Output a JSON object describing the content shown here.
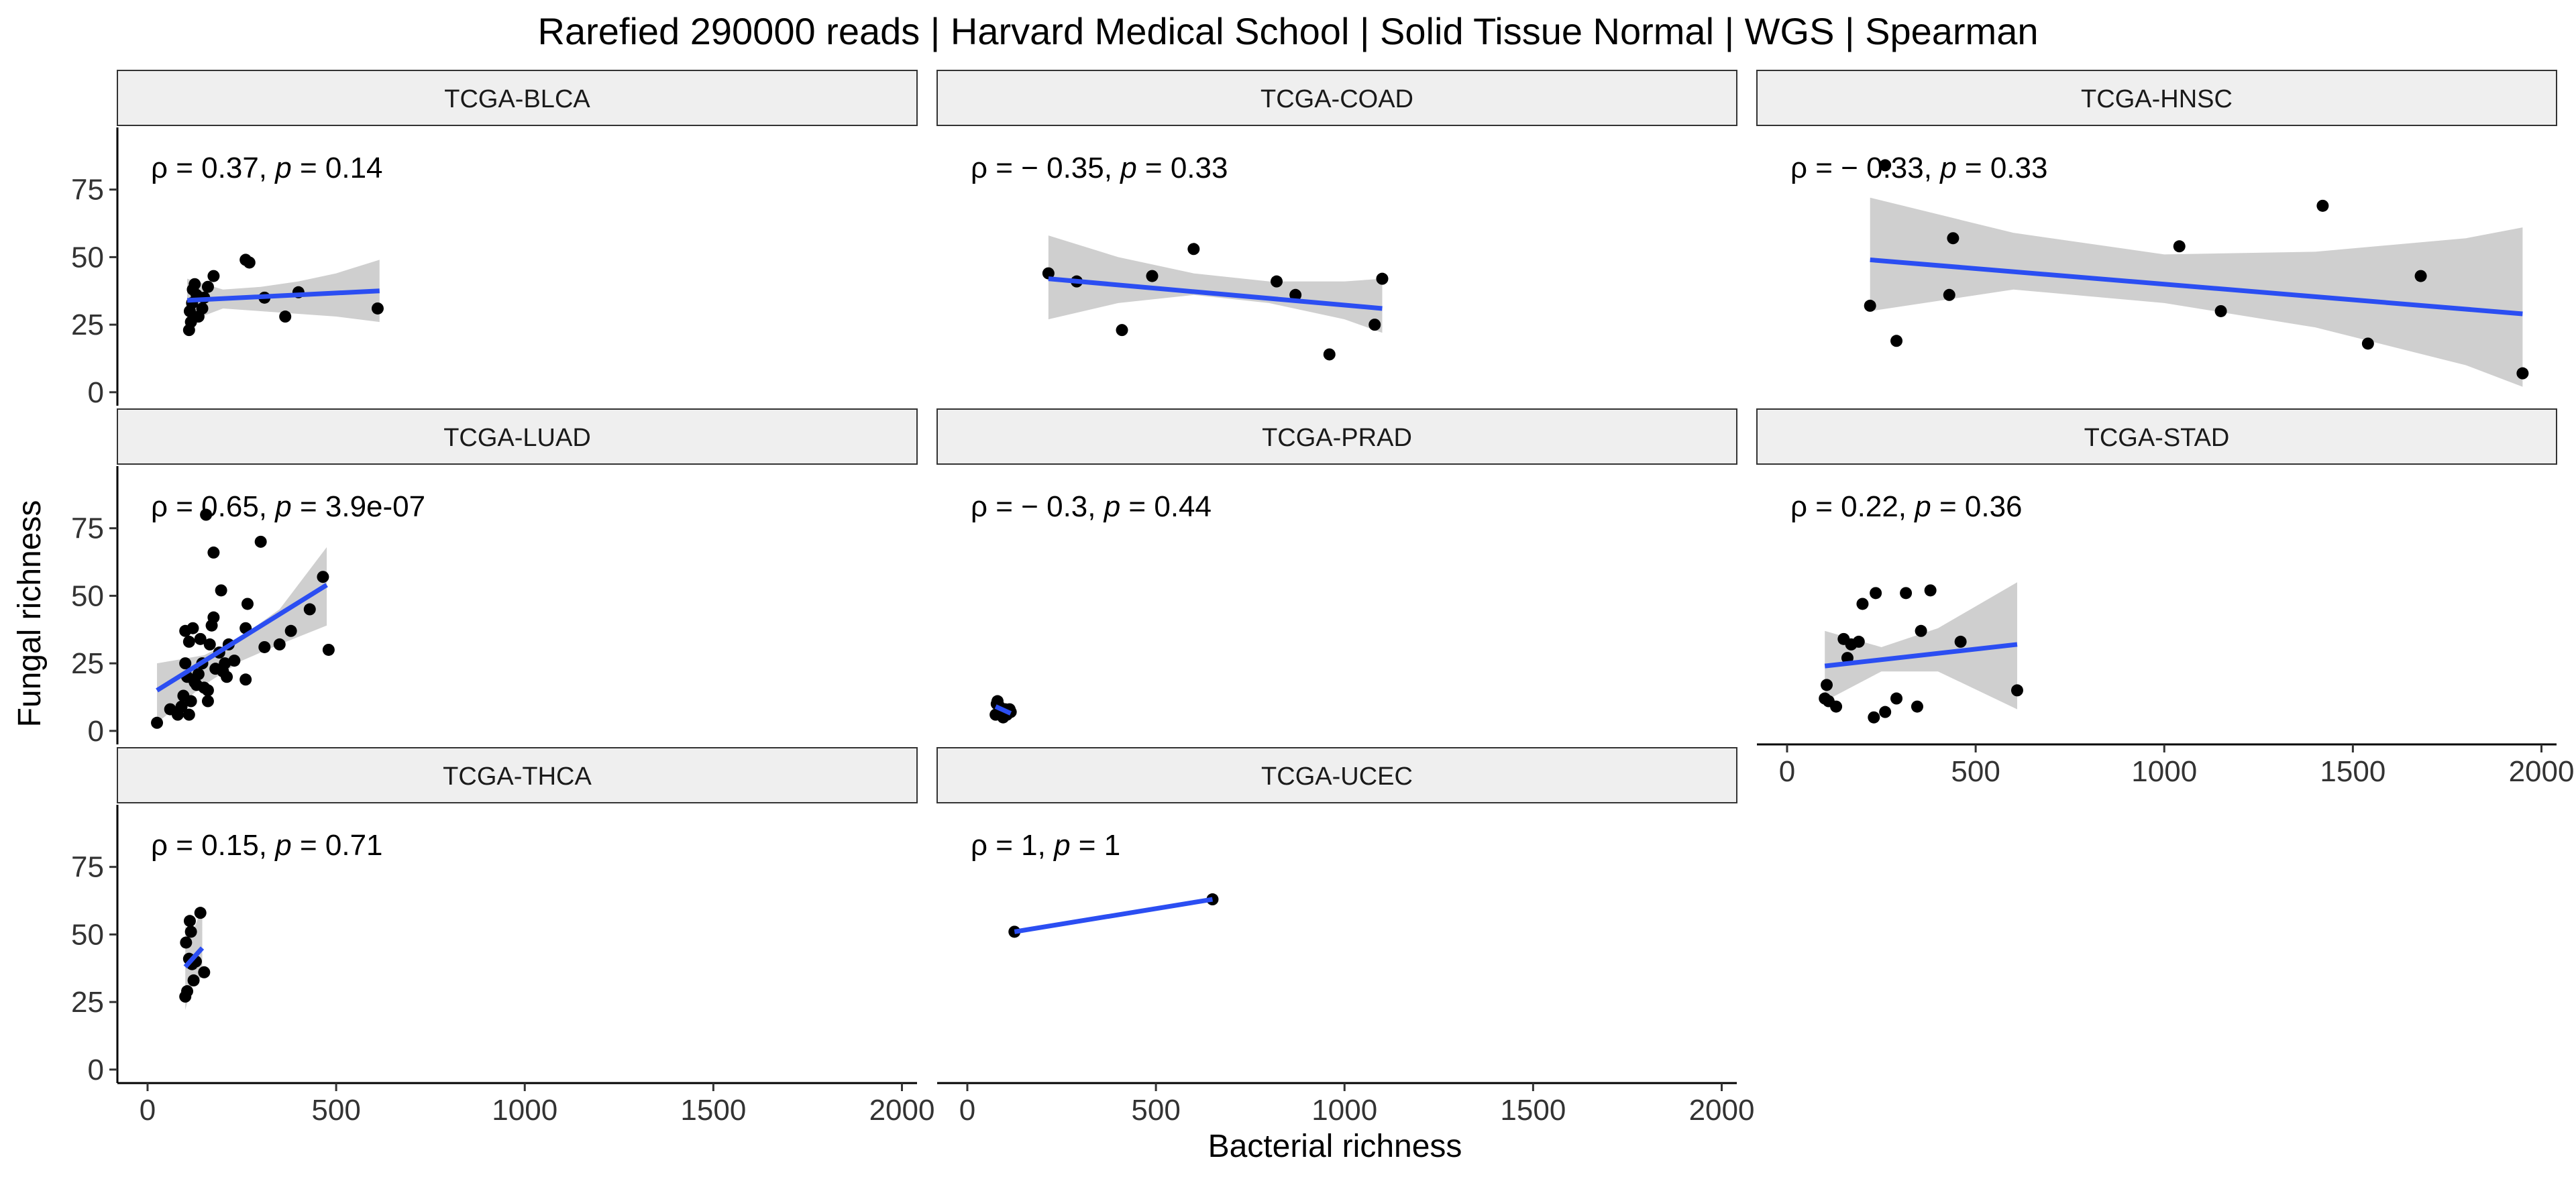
{
  "chart_data": {
    "type": "scatter",
    "title": "Rarefied 290000 reads | Harvard Medical School | Solid Tissue Normal | WGS | Spearman",
    "xlabel": "Bacterial richness",
    "ylabel": "Fungal richness",
    "xlim": [
      -80,
      2040
    ],
    "ylim": [
      -5,
      98
    ],
    "xticks": [
      0,
      500,
      1000,
      1500,
      2000
    ],
    "yticks": [
      0,
      25,
      50,
      75
    ],
    "grid": false,
    "legend": "none",
    "colors": {
      "point": "#000000",
      "fit_line": "#2b4ef2",
      "ribbon": "#cccccc",
      "strip_fill": "#efefef"
    },
    "panels": [
      {
        "name": "TCGA-BLCA",
        "rho": "0.37",
        "p": "0.14",
        "fit": {
          "x": [
            105,
            615
          ],
          "y": [
            34,
            37.5
          ]
        },
        "band": {
          "x": [
            105,
            200,
            300,
            400,
            500,
            615
          ],
          "lower": [
            26,
            31,
            30,
            29,
            28,
            26
          ],
          "upper": [
            42,
            38,
            39,
            41,
            44,
            49
          ]
        },
        "points": [
          [
            110,
            23
          ],
          [
            115,
            26
          ],
          [
            112,
            30
          ],
          [
            118,
            33
          ],
          [
            120,
            38
          ],
          [
            125,
            40
          ],
          [
            130,
            36
          ],
          [
            135,
            28
          ],
          [
            145,
            31
          ],
          [
            150,
            35
          ],
          [
            160,
            39
          ],
          [
            175,
            43
          ],
          [
            260,
            49
          ],
          [
            270,
            48
          ],
          [
            310,
            35
          ],
          [
            365,
            28
          ],
          [
            400,
            37
          ],
          [
            610,
            31
          ]
        ]
      },
      {
        "name": "TCGA-COAD",
        "rho": "− 0.35",
        "p": "0.33",
        "fit": {
          "x": [
            215,
            1100
          ],
          "y": [
            42,
            31
          ]
        },
        "band": {
          "x": [
            215,
            400,
            600,
            800,
            1000,
            1100
          ],
          "lower": [
            27,
            33,
            36,
            33,
            27,
            22
          ],
          "upper": [
            58,
            50,
            44,
            41,
            41,
            42
          ]
        },
        "points": [
          [
            215,
            44
          ],
          [
            290,
            41
          ],
          [
            410,
            23
          ],
          [
            490,
            43
          ],
          [
            600,
            53
          ],
          [
            820,
            41
          ],
          [
            870,
            36
          ],
          [
            960,
            14
          ],
          [
            1080,
            25
          ],
          [
            1100,
            42
          ]
        ]
      },
      {
        "name": "TCGA-HNSC",
        "rho": "− 0.33",
        "p": "0.33",
        "fit": {
          "x": [
            220,
            1950
          ],
          "y": [
            49,
            29
          ]
        },
        "band": {
          "x": [
            220,
            600,
            1000,
            1400,
            1800,
            1950
          ],
          "lower": [
            30,
            38,
            33,
            24,
            10,
            2
          ],
          "upper": [
            72,
            59,
            51,
            52,
            57,
            61
          ]
        },
        "points": [
          [
            220,
            32
          ],
          [
            260,
            84
          ],
          [
            290,
            19
          ],
          [
            430,
            36
          ],
          [
            440,
            57
          ],
          [
            1040,
            54
          ],
          [
            1150,
            30
          ],
          [
            1420,
            69
          ],
          [
            1540,
            18
          ],
          [
            1680,
            43
          ],
          [
            1950,
            7
          ]
        ]
      },
      {
        "name": "TCGA-LUAD",
        "rho": "0.65",
        "p": "3.9e-07",
        "fit": {
          "x": [
            25,
            475
          ],
          "y": [
            15,
            54
          ]
        },
        "band": {
          "x": [
            25,
            150,
            250,
            350,
            475
          ],
          "lower": [
            3,
            17,
            26,
            32,
            39
          ],
          "upper": [
            25,
            28,
            35,
            45,
            68
          ]
        },
        "points": [
          [
            25,
            3
          ],
          [
            60,
            8
          ],
          [
            80,
            6
          ],
          [
            90,
            9
          ],
          [
            95,
            13
          ],
          [
            100,
            37
          ],
          [
            100,
            25
          ],
          [
            105,
            20
          ],
          [
            110,
            6
          ],
          [
            110,
            33
          ],
          [
            115,
            11
          ],
          [
            120,
            38
          ],
          [
            125,
            18
          ],
          [
            130,
            17
          ],
          [
            135,
            21
          ],
          [
            140,
            34
          ],
          [
            145,
            25
          ],
          [
            150,
            16
          ],
          [
            155,
            80
          ],
          [
            160,
            15
          ],
          [
            160,
            11
          ],
          [
            165,
            32
          ],
          [
            170,
            39
          ],
          [
            175,
            42
          ],
          [
            175,
            66
          ],
          [
            180,
            23
          ],
          [
            190,
            29
          ],
          [
            195,
            52
          ],
          [
            200,
            22
          ],
          [
            205,
            25
          ],
          [
            210,
            20
          ],
          [
            215,
            32
          ],
          [
            230,
            26
          ],
          [
            260,
            38
          ],
          [
            260,
            19
          ],
          [
            265,
            47
          ],
          [
            300,
            70
          ],
          [
            310,
            31
          ],
          [
            350,
            32
          ],
          [
            380,
            37
          ],
          [
            430,
            45
          ],
          [
            465,
            57
          ],
          [
            480,
            30
          ]
        ]
      },
      {
        "name": "TCGA-PRAD",
        "rho": "− 0.3",
        "p": "0.44",
        "fit": {
          "x": [
            75,
            115
          ],
          "y": [
            9,
            6.5
          ]
        },
        "band": {
          "x": [
            75,
            95,
            115
          ],
          "lower": [
            6,
            6,
            4
          ],
          "upper": [
            12,
            9,
            9
          ]
        },
        "points": [
          [
            75,
            6
          ],
          [
            78,
            10
          ],
          [
            80,
            11
          ],
          [
            85,
            9
          ],
          [
            90,
            7
          ],
          [
            95,
            5
          ],
          [
            100,
            8
          ],
          [
            105,
            6
          ],
          [
            112,
            8
          ],
          [
            115,
            7
          ]
        ]
      },
      {
        "name": "TCGA-STAD",
        "rho": "0.22",
        "p": "0.36",
        "fit": {
          "x": [
            100,
            610
          ],
          "y": [
            24,
            32
          ]
        },
        "band": {
          "x": [
            100,
            250,
            400,
            610
          ],
          "lower": [
            11,
            22,
            22,
            8
          ],
          "upper": [
            37,
            31,
            38,
            55
          ]
        },
        "points": [
          [
            100,
            12
          ],
          [
            105,
            17
          ],
          [
            110,
            11
          ],
          [
            130,
            9
          ],
          [
            150,
            34
          ],
          [
            160,
            27
          ],
          [
            170,
            32
          ],
          [
            190,
            33
          ],
          [
            200,
            47
          ],
          [
            230,
            5
          ],
          [
            235,
            51
          ],
          [
            260,
            7
          ],
          [
            290,
            12
          ],
          [
            315,
            51
          ],
          [
            345,
            9
          ],
          [
            355,
            37
          ],
          [
            380,
            52
          ],
          [
            460,
            33
          ],
          [
            610,
            15
          ]
        ]
      },
      {
        "name": "TCGA-THCA",
        "rho": "0.15",
        "p": "0.71",
        "fit": {
          "x": [
            100,
            145
          ],
          "y": [
            38,
            45
          ]
        },
        "band": {
          "x": [
            100,
            120,
            145
          ],
          "lower": [
            22,
            33,
            34
          ],
          "upper": [
            53,
            51,
            60
          ]
        },
        "points": [
          [
            100,
            27
          ],
          [
            102,
            47
          ],
          [
            105,
            29
          ],
          [
            110,
            41
          ],
          [
            112,
            55
          ],
          [
            115,
            51
          ],
          [
            118,
            39
          ],
          [
            122,
            33
          ],
          [
            128,
            40
          ],
          [
            140,
            58
          ],
          [
            150,
            36
          ]
        ]
      },
      {
        "name": "TCGA-UCEC",
        "rho": "1",
        "p": "1",
        "fit": {
          "x": [
            125,
            650
          ],
          "y": [
            51,
            63
          ]
        },
        "band": {
          "x": [
            125,
            650
          ],
          "lower": [
            51,
            63
          ],
          "upper": [
            51,
            63
          ]
        },
        "points": [
          [
            125,
            51
          ],
          [
            650,
            63
          ]
        ]
      }
    ]
  }
}
